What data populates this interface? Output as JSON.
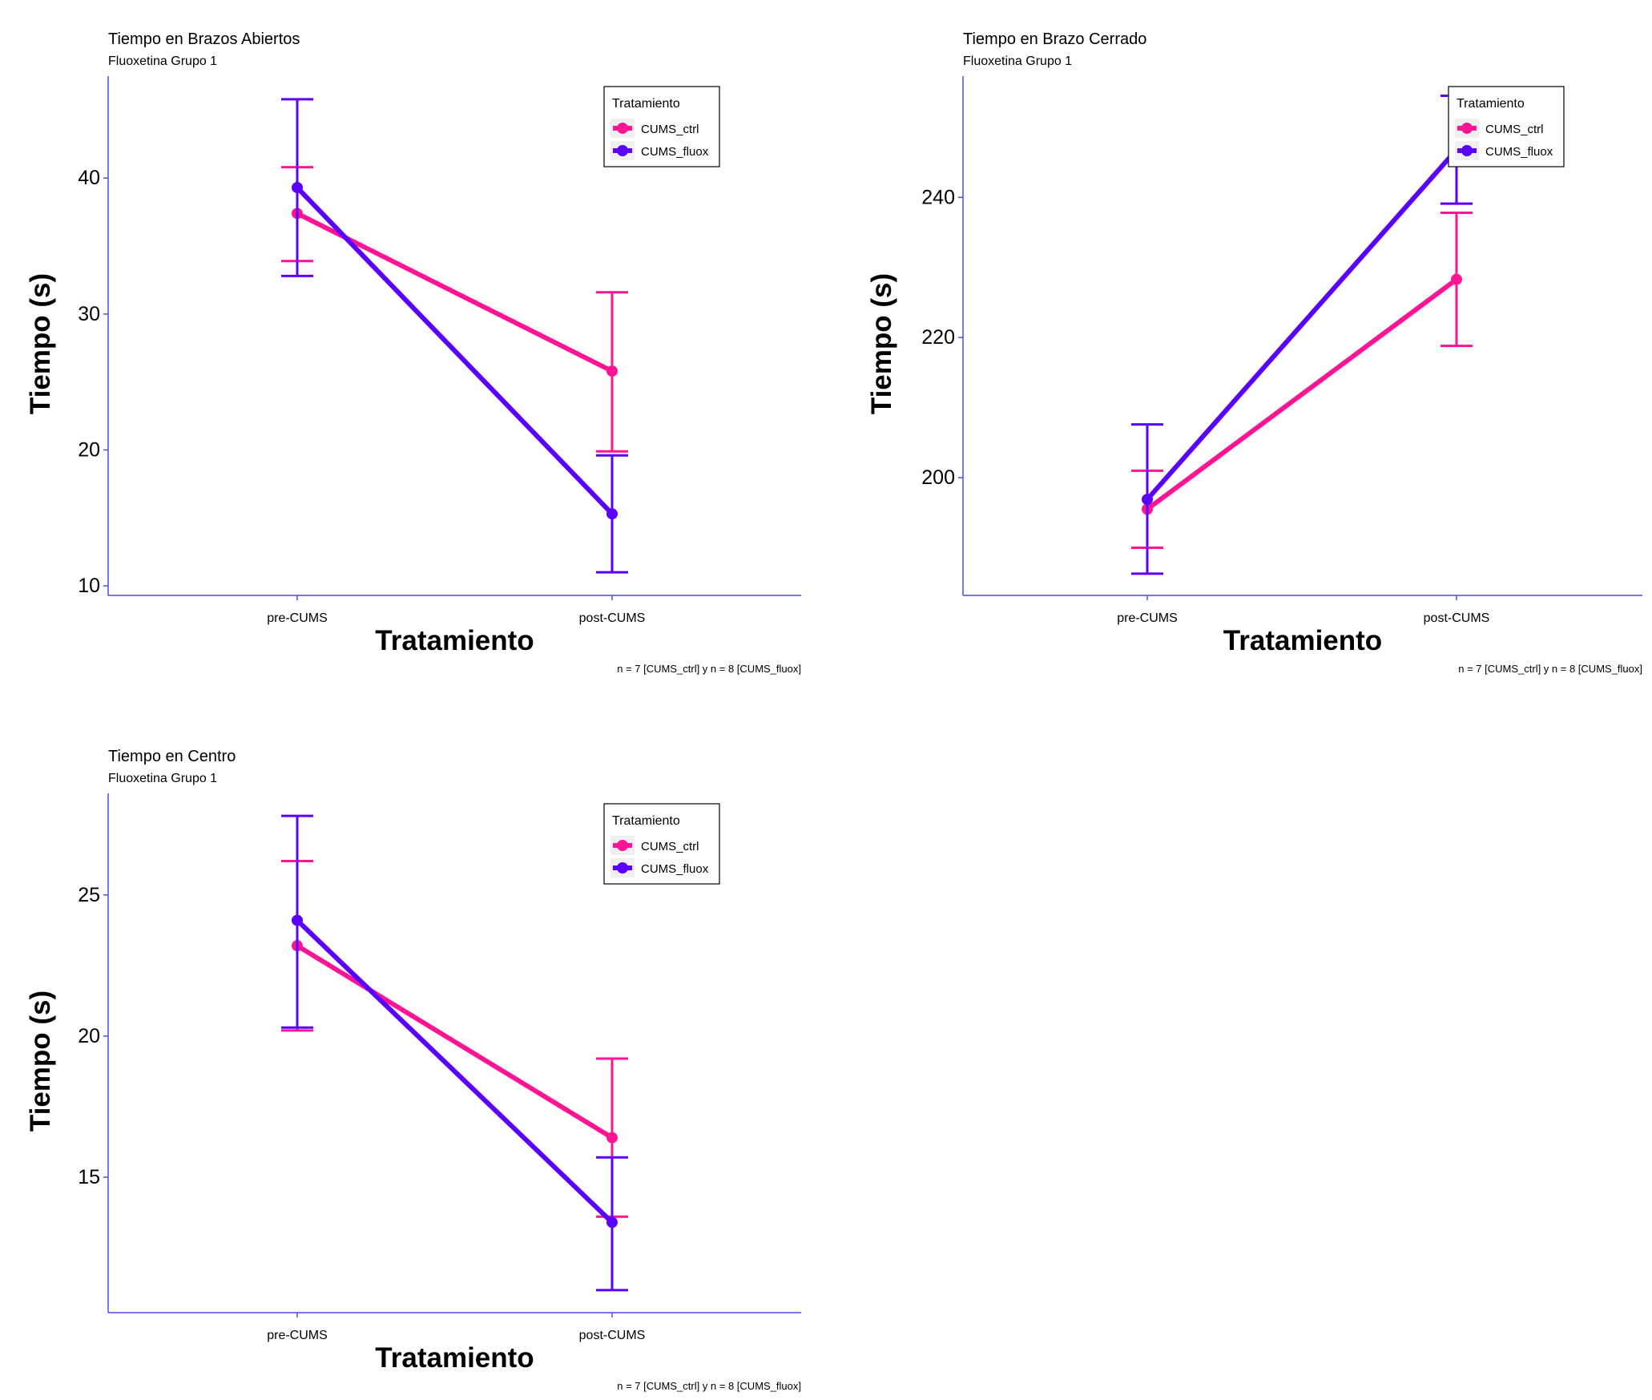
{
  "colors": {
    "CUMS_ctrl": "#ff1493",
    "CUMS_fluox": "#5a00ff",
    "axis": "#4a4aff"
  },
  "chart_data": [
    {
      "type": "line",
      "title": "Tiempo en Brazos Abiertos",
      "subtitle": "Fluoxetina Grupo 1",
      "xlabel": "Tratamiento",
      "ylabel": "Tiempo (s)",
      "caption": "n = 7  [CUMS_ctrl] y n = 8 [CUMS_fluox]",
      "categories": [
        "pre-CUMS",
        "post-CUMS"
      ],
      "ylim": [
        9.3,
        47.5
      ],
      "yticks": [
        10,
        20,
        30,
        40
      ],
      "legend": {
        "title": "Tratamiento",
        "position": "top-right"
      },
      "series": [
        {
          "name": "CUMS_ctrl",
          "values": [
            37.4,
            25.8
          ],
          "lower": [
            33.9,
            19.9
          ],
          "upper": [
            40.8,
            31.6
          ]
        },
        {
          "name": "CUMS_fluox",
          "values": [
            39.3,
            15.3
          ],
          "lower": [
            32.8,
            11.0
          ],
          "upper": [
            45.8,
            19.6
          ]
        }
      ]
    },
    {
      "type": "line",
      "title": "Tiempo en Brazo Cerrado",
      "subtitle": "Fluoxetina Grupo 1",
      "xlabel": "Tratamiento",
      "ylabel": "Tiempo (s)",
      "caption": "n = 7  [CUMS_ctrl] y n = 8 [CUMS_fluox]",
      "categories": [
        "pre-CUMS",
        "post-CUMS"
      ],
      "ylim": [
        183.2,
        257.3
      ],
      "yticks": [
        200,
        220,
        240
      ],
      "legend": {
        "title": "Tratamiento",
        "position": "top-right"
      },
      "series": [
        {
          "name": "CUMS_ctrl",
          "values": [
            195.5,
            228.3
          ],
          "lower": [
            190.0,
            218.8
          ],
          "upper": [
            201.0,
            237.8
          ]
        },
        {
          "name": "CUMS_fluox",
          "values": [
            196.9,
            246.8
          ],
          "lower": [
            186.3,
            239.1
          ],
          "upper": [
            207.6,
            254.5
          ]
        }
      ]
    },
    {
      "type": "line",
      "title": "Tiempo en Centro",
      "subtitle": "Fluoxetina Grupo 1",
      "xlabel": "Tratamiento",
      "ylabel": "Tiempo (s)",
      "caption": "n = 7  [CUMS_ctrl] y n = 8 [CUMS_fluox]",
      "categories": [
        "pre-CUMS",
        "post-CUMS"
      ],
      "ylim": [
        10.2,
        28.6
      ],
      "yticks": [
        15,
        20,
        25
      ],
      "legend": {
        "title": "Tratamiento",
        "position": "top-right"
      },
      "series": [
        {
          "name": "CUMS_ctrl",
          "values": [
            23.2,
            16.4
          ],
          "lower": [
            20.2,
            13.6
          ],
          "upper": [
            26.2,
            19.2
          ]
        },
        {
          "name": "CUMS_fluox",
          "values": [
            24.1,
            13.4
          ],
          "lower": [
            20.3,
            11.0
          ],
          "upper": [
            27.8,
            15.7
          ]
        }
      ]
    }
  ]
}
